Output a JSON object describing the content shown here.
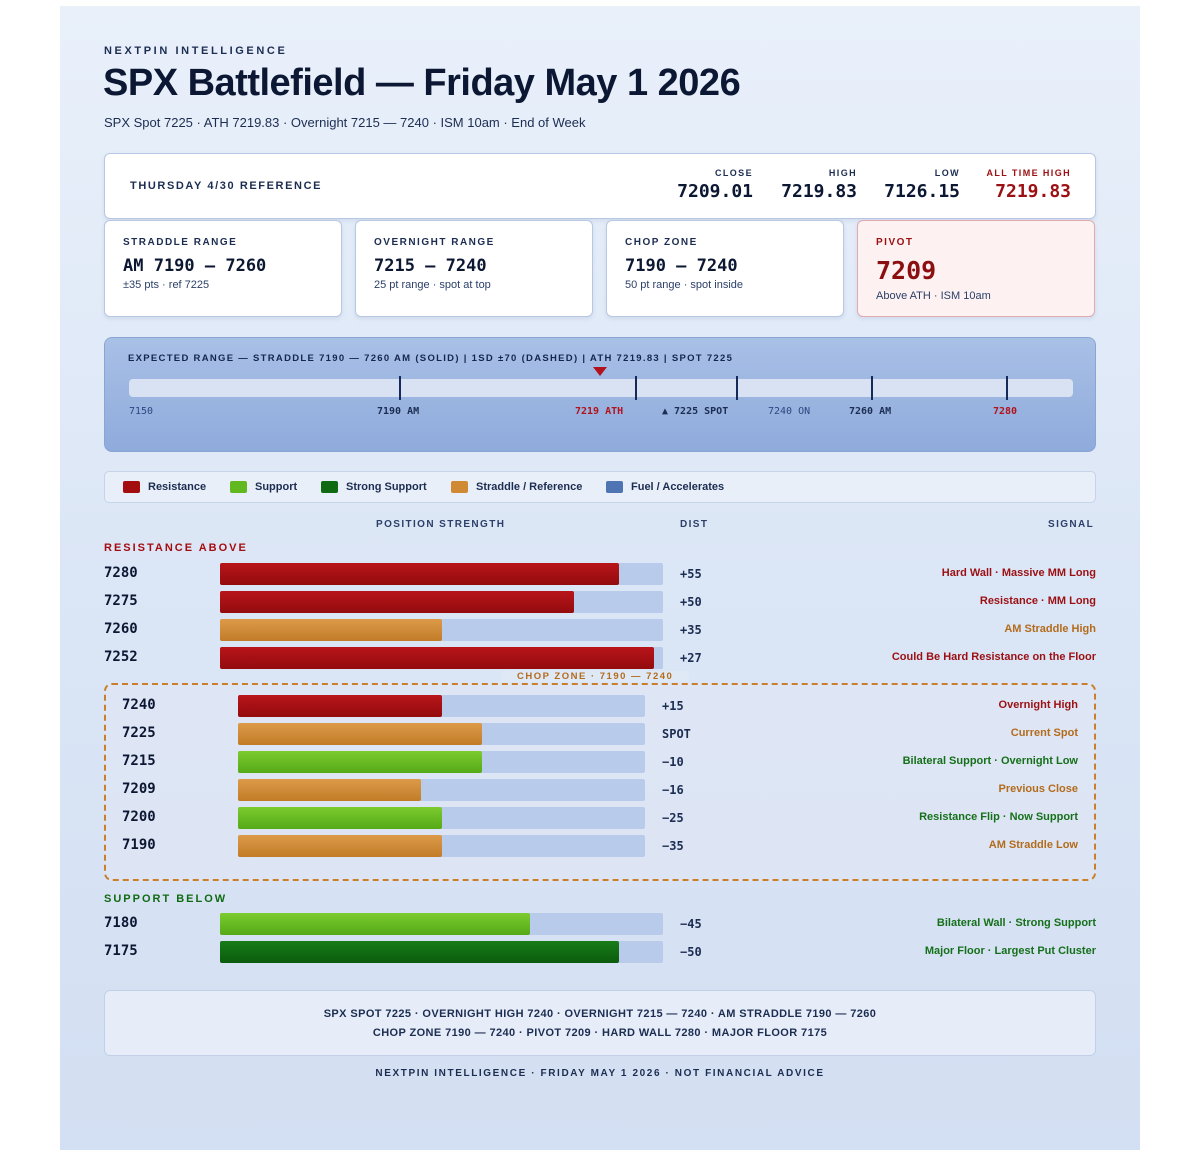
{
  "brand": "NEXTPIN INTELLIGENCE",
  "title": "SPX Battlefield — Friday May 1 2026",
  "subtitle": "SPX Spot 7225 · ATH 7219.83 · Overnight 7215 — 7240 · ISM 10am · End of Week",
  "reference": {
    "label": "THURSDAY 4/30 REFERENCE",
    "close_label": "CLOSE",
    "close": "7209.01",
    "high_label": "HIGH",
    "high": "7219.83",
    "low_label": "LOW",
    "low": "7126.15",
    "ath_label": "ALL TIME HIGH",
    "ath": "7219.83"
  },
  "cards": {
    "straddle": {
      "label": "STRADDLE RANGE",
      "value": "AM 7190 — 7260",
      "note": "±35 pts · ref 7225"
    },
    "overnight": {
      "label": "OVERNIGHT RANGE",
      "value": "7215 — 7240",
      "note": "25 pt range · spot at top"
    },
    "chop": {
      "label": "CHOP ZONE",
      "value": "7190 — 7240",
      "note": "50 pt range · spot inside"
    },
    "pivot": {
      "label": "PIVOT",
      "value": "7209",
      "note": "Above ATH · ISM 10am"
    }
  },
  "expected_range": {
    "title": "EXPECTED RANGE — STRADDLE 7190 — 7260 AM (SOLID) | 1SD ±70 (DASHED) | ATH 7219.83 | SPOT 7225",
    "labels": {
      "min": "7150",
      "straddle_low": "7190 AM",
      "ath": "7219 ATH",
      "spot": "▲ 7225 SPOT",
      "overnight": "7240 ON",
      "straddle_high": "7260 AM",
      "max": "7280"
    }
  },
  "legend": {
    "resistance": "Resistance",
    "support": "Support",
    "strong_support": "Strong Support",
    "straddle": "Straddle / Reference",
    "fuel": "Fuel / Accelerates"
  },
  "colors": {
    "resistance": "#a40d10",
    "support": "#62b81f",
    "strong_support": "#0f6a12",
    "straddle": "#d08a34",
    "fuel": "#4f74b4",
    "track": "#b9cbea"
  },
  "columns": {
    "strength": "POSITION STRENGTH",
    "dist": "DIST",
    "signal": "SIGNAL"
  },
  "sections": {
    "resistance_title": "RESISTANCE ABOVE",
    "chop_title": "CHOP ZONE · 7190 — 7240",
    "support_title": "SUPPORT BELOW"
  },
  "resistance": [
    {
      "price": "7280",
      "dist": "+55",
      "signal": "Hard Wall · Massive MM Long",
      "strength": 0.9,
      "kind": "resistance"
    },
    {
      "price": "7275",
      "dist": "+50",
      "signal": "Resistance · MM Long",
      "strength": 0.8,
      "kind": "resistance"
    },
    {
      "price": "7260",
      "dist": "+35",
      "signal": "AM Straddle High",
      "strength": 0.5,
      "kind": "straddle"
    },
    {
      "price": "7252",
      "dist": "+27",
      "signal": "Could Be Hard Resistance on the Floor",
      "strength": 0.98,
      "kind": "resistance"
    }
  ],
  "chop": [
    {
      "price": "7240",
      "dist": "+15",
      "signal": "Overnight High",
      "strength": 0.5,
      "kind": "resistance"
    },
    {
      "price": "7225",
      "dist": "SPOT",
      "signal": "Current Spot",
      "strength": 0.6,
      "kind": "straddle"
    },
    {
      "price": "7215",
      "dist": "−10",
      "signal": "Bilateral Support · Overnight Low",
      "strength": 0.6,
      "kind": "support"
    },
    {
      "price": "7209",
      "dist": "−16",
      "signal": "Previous Close",
      "strength": 0.45,
      "kind": "straddle"
    },
    {
      "price": "7200",
      "dist": "−25",
      "signal": "Resistance Flip · Now Support",
      "strength": 0.5,
      "kind": "support"
    },
    {
      "price": "7190",
      "dist": "−35",
      "signal": "AM Straddle Low",
      "strength": 0.5,
      "kind": "straddle"
    }
  ],
  "support": [
    {
      "price": "7180",
      "dist": "−45",
      "signal": "Bilateral Wall · Strong Support",
      "strength": 0.7,
      "kind": "support"
    },
    {
      "price": "7175",
      "dist": "−50",
      "signal": "Major Floor · Largest Put Cluster",
      "strength": 0.9,
      "kind": "strong_support"
    }
  ],
  "summary": {
    "line1": "SPX SPOT 7225 · OVERNIGHT HIGH 7240 · OVERNIGHT 7215 — 7240 · AM STRADDLE 7190 — 7260",
    "line2": "CHOP ZONE 7190 — 7240 · PIVOT 7209 · HARD WALL 7280 · MAJOR FLOOR 7175"
  },
  "footer": "NEXTPIN INTELLIGENCE · FRIDAY MAY 1 2026 · NOT FINANCIAL ADVICE"
}
